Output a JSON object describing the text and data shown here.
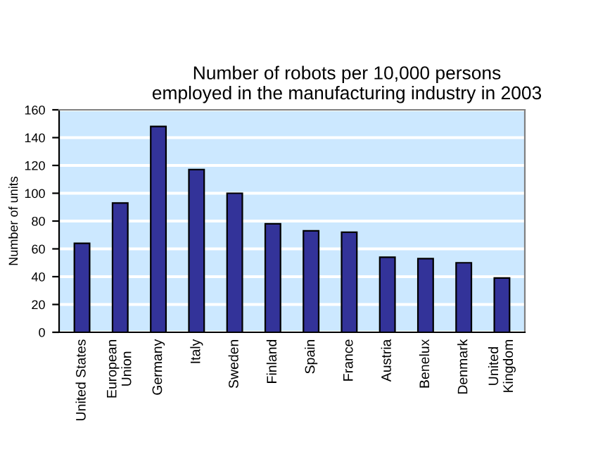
{
  "chart_data": {
    "type": "bar",
    "title": "Number of robots per 10,000 persons\nemployed in the manufacturing industry in 2003",
    "ylabel": "Number of units",
    "categories": [
      "United States",
      "European\nUnion",
      "Germany",
      "Italy",
      "Sweden",
      "Finland",
      "Spain",
      "France",
      "Austria",
      "Benelux",
      "Denmark",
      "United\nKingdom"
    ],
    "values": [
      64,
      93,
      148,
      117,
      100,
      78,
      73,
      72,
      54,
      53,
      50,
      39
    ],
    "color": "#333399",
    "ylim": [
      0,
      160
    ],
    "yticks": [
      0,
      20,
      40,
      60,
      80,
      100,
      120,
      140,
      160
    ],
    "grid": "y"
  }
}
